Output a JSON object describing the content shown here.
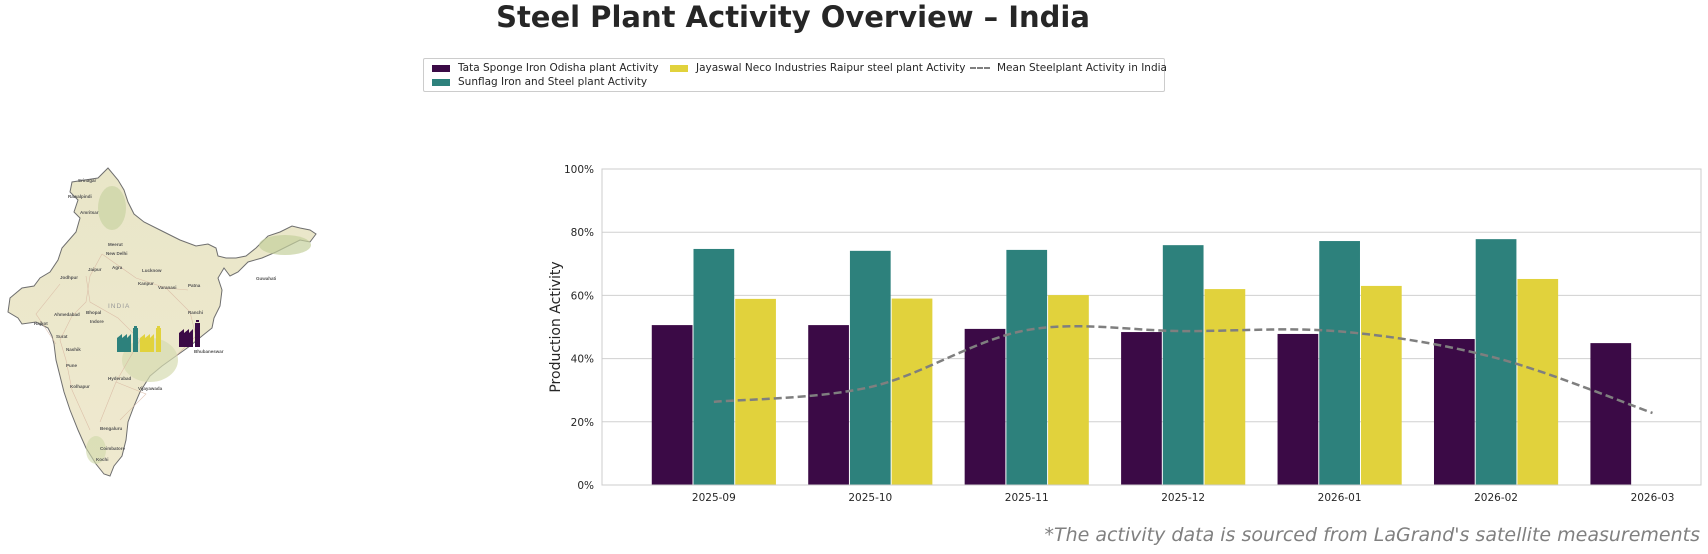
{
  "title": "Steel Plant Activity Overview – India",
  "legend": {
    "items": [
      {
        "label": "Tata Sponge Iron Odisha plant Activity",
        "color": "#3b0a46",
        "kind": "bar"
      },
      {
        "label": "Sunflag Iron and Steel plant Activity",
        "color": "#2d817c",
        "kind": "bar"
      },
      {
        "label": "Jayaswal Neco Industries Raipur steel plant Activity",
        "color": "#e1d23c",
        "kind": "bar"
      },
      {
        "label": "Mean Steelplant Activity in India",
        "color": "#7f7f7f",
        "kind": "dashed-line"
      }
    ]
  },
  "map": {
    "country_label": "INDIA",
    "cities": [
      "Srinagar",
      "Rawalpindi",
      "Amritsar",
      "Meerut",
      "New Delhi",
      "Jaipur",
      "Agra",
      "Lucknow",
      "Jodhpur",
      "Kanpur",
      "Varanasi",
      "Patna",
      "Guwahati",
      "Ahmedabad",
      "Bhopal",
      "Indore",
      "Ranchi",
      "Rajkot",
      "Surat",
      "Nashik",
      "Pune",
      "Hyderabad",
      "Kolhapur",
      "Vijayawada",
      "Bengaluru",
      "Coimbatore",
      "Kochi",
      "Bhubaneswar"
    ],
    "plant_markers": [
      {
        "name": "Sunflag Iron and Steel plant",
        "color": "#2d817c"
      },
      {
        "name": "Jayaswal Neco Industries Raipur steel plant",
        "color": "#e1d23c"
      },
      {
        "name": "Tata Sponge Iron Odisha plant",
        "color": "#3b0a46"
      }
    ]
  },
  "footnote": "*The activity data is sourced from LaGrand's satellite measurements",
  "chart_data": {
    "type": "bar",
    "title": "",
    "xlabel": "",
    "ylabel": "Production Activity",
    "ylim": [
      0,
      100
    ],
    "yticks": [
      "0%",
      "20%",
      "40%",
      "60%",
      "80%",
      "100%"
    ],
    "grid": true,
    "legend_position": "top-center",
    "categories": [
      "2025-09",
      "2025-10",
      "2025-11",
      "2025-12",
      "2026-01",
      "2026-02",
      "2026-03"
    ],
    "series": [
      {
        "name": "Tata Sponge Iron Odisha plant Activity",
        "type": "bar",
        "color": "#3b0a46",
        "values": [
          50.6,
          50.6,
          49.4,
          48.4,
          47.8,
          46.2,
          44.9
        ]
      },
      {
        "name": "Sunflag Iron and Steel plant Activity",
        "type": "bar",
        "color": "#2d817c",
        "values": [
          74.7,
          74.1,
          74.4,
          75.9,
          77.2,
          77.8,
          null
        ]
      },
      {
        "name": "Jayaswal Neco Industries Raipur steel plant Activity",
        "type": "bar",
        "color": "#e1d23c",
        "values": [
          58.9,
          59.0,
          60.1,
          62.0,
          63.0,
          65.2,
          null
        ]
      },
      {
        "name": "Mean Steelplant Activity in India",
        "type": "line",
        "style": "dashed",
        "color": "#7f7f7f",
        "values": [
          26.3,
          31.0,
          49.0,
          48.7,
          48.6,
          40.2,
          22.8
        ]
      }
    ]
  }
}
